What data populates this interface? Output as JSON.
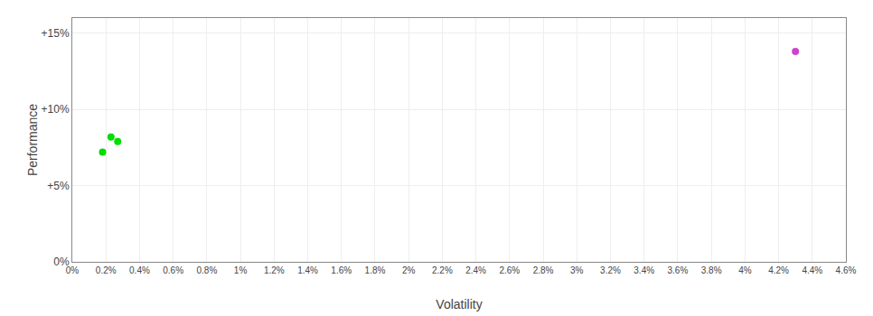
{
  "chart_data": {
    "type": "scatter",
    "xlabel": "Volatility",
    "ylabel": "Performance",
    "xlim": [
      0,
      0.046
    ],
    "ylim": [
      0,
      0.16
    ],
    "xticks": [
      {
        "value": 0.0,
        "label": "0%"
      },
      {
        "value": 0.002,
        "label": "0.2%"
      },
      {
        "value": 0.004,
        "label": "0.4%"
      },
      {
        "value": 0.006,
        "label": "0.6%"
      },
      {
        "value": 0.008,
        "label": "0.8%"
      },
      {
        "value": 0.01,
        "label": "1%"
      },
      {
        "value": 0.012,
        "label": "1.2%"
      },
      {
        "value": 0.014,
        "label": "1.4%"
      },
      {
        "value": 0.016,
        "label": "1.6%"
      },
      {
        "value": 0.018,
        "label": "1.8%"
      },
      {
        "value": 0.02,
        "label": "2%"
      },
      {
        "value": 0.022,
        "label": "2.2%"
      },
      {
        "value": 0.024,
        "label": "2.4%"
      },
      {
        "value": 0.026,
        "label": "2.6%"
      },
      {
        "value": 0.028,
        "label": "2.8%"
      },
      {
        "value": 0.03,
        "label": "3%"
      },
      {
        "value": 0.032,
        "label": "3.2%"
      },
      {
        "value": 0.034,
        "label": "3.4%"
      },
      {
        "value": 0.036,
        "label": "3.6%"
      },
      {
        "value": 0.038,
        "label": "3.8%"
      },
      {
        "value": 0.04,
        "label": "4%"
      },
      {
        "value": 0.042,
        "label": "4.2%"
      },
      {
        "value": 0.044,
        "label": "4.4%"
      },
      {
        "value": 0.046,
        "label": "4.6%"
      }
    ],
    "yticks": [
      {
        "value": 0.0,
        "label": "0%"
      },
      {
        "value": 0.05,
        "label": "+5%"
      },
      {
        "value": 0.1,
        "label": "+10%"
      },
      {
        "value": 0.15,
        "label": "+15%"
      }
    ],
    "grid": true,
    "series": [
      {
        "color": "#00dd00",
        "x": [
          0.0023,
          0.0027,
          0.0018
        ],
        "values": [
          0.082,
          0.079,
          0.072
        ]
      },
      {
        "color": "#cc44cc",
        "x": [
          0.043
        ],
        "values": [
          0.138
        ]
      }
    ]
  }
}
